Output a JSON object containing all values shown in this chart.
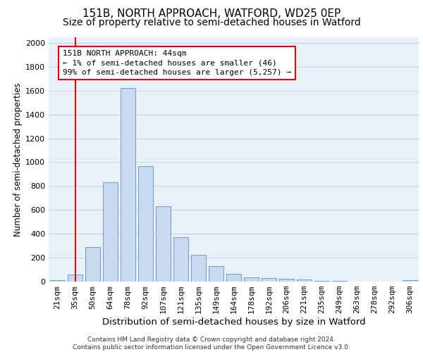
{
  "title": "151B, NORTH APPROACH, WATFORD, WD25 0EP",
  "subtitle": "Size of property relative to semi-detached houses in Watford",
  "xlabel": "Distribution of semi-detached houses by size in Watford",
  "ylabel": "Number of semi-detached properties",
  "footer_line1": "Contains HM Land Registry data © Crown copyright and database right 2024.",
  "footer_line2": "Contains public sector information licensed under the Open Government Licence v3.0.",
  "categories": [
    "21sqm",
    "35sqm",
    "50sqm",
    "64sqm",
    "78sqm",
    "92sqm",
    "107sqm",
    "121sqm",
    "135sqm",
    "149sqm",
    "164sqm",
    "178sqm",
    "192sqm",
    "206sqm",
    "221sqm",
    "235sqm",
    "249sqm",
    "263sqm",
    "278sqm",
    "292sqm",
    "306sqm"
  ],
  "values": [
    10,
    60,
    290,
    830,
    1620,
    970,
    630,
    370,
    225,
    130,
    65,
    35,
    30,
    25,
    15,
    8,
    3,
    1,
    0,
    0,
    10
  ],
  "bar_color": "#c8daf0",
  "bar_edge_color": "#6090c0",
  "grid_color": "#c8d4e8",
  "background_color": "#e8f0f8",
  "annotation_text": "151B NORTH APPROACH: 44sqm\n← 1% of semi-detached houses are smaller (46)\n99% of semi-detached houses are larger (5,257) →",
  "marker_line_index": 1,
  "ylim": [
    0,
    2050
  ],
  "yticks": [
    0,
    200,
    400,
    600,
    800,
    1000,
    1200,
    1400,
    1600,
    1800,
    2000
  ],
  "title_fontsize": 11,
  "subtitle_fontsize": 10,
  "xlabel_fontsize": 9.5,
  "ylabel_fontsize": 8.5,
  "tick_fontsize": 8,
  "annotation_fontsize": 8,
  "footer_fontsize": 6.5
}
